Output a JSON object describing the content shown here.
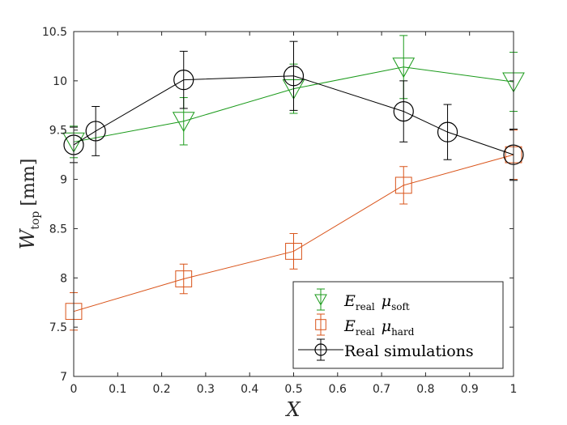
{
  "chart_data": {
    "type": "line",
    "title": "",
    "xlabel": "X",
    "ylabel": {
      "main": "W",
      "subscript": "top",
      "unit": "[mm]"
    },
    "xlim": [
      0,
      1
    ],
    "ylim": [
      7,
      10.5
    ],
    "xticks": [
      0,
      0.1,
      0.2,
      0.3,
      0.4,
      0.5,
      0.6,
      0.7,
      0.8,
      0.9,
      1
    ],
    "xtick_labels": [
      "0",
      "0.1",
      "0.2",
      "0.3",
      "0.4",
      "0.5",
      "0.6",
      "0.7",
      "0.8",
      "0.9",
      "1"
    ],
    "yticks": [
      7,
      7.5,
      8,
      8.5,
      9,
      9.5,
      10,
      10.5
    ],
    "ytick_labels": [
      "7",
      "7.5",
      "8",
      "8.5",
      "9",
      "9.5",
      "10",
      "10.5"
    ],
    "grid": false,
    "legend_position": "bottom-right",
    "series": [
      {
        "name": "E_real mu_soft",
        "legend": {
          "e": "E",
          "esub": "real",
          "mu": "μ",
          "musub": "soft"
        },
        "color": "#1a9a1a",
        "marker": "triangle-down",
        "x": [
          0,
          0.25,
          0.5,
          0.75,
          1
        ],
        "y": [
          9.38,
          9.59,
          9.92,
          10.14,
          9.99
        ],
        "err": [
          0.16,
          0.24,
          0.25,
          0.32,
          0.3
        ]
      },
      {
        "name": "E_real mu_hard",
        "legend": {
          "e": "E",
          "esub": "real",
          "mu": "μ",
          "musub": "hard"
        },
        "color": "#d95319",
        "marker": "square",
        "x": [
          0,
          0.25,
          0.5,
          0.75,
          1
        ],
        "y": [
          7.66,
          7.99,
          8.27,
          8.94,
          9.25
        ],
        "err": [
          0.19,
          0.15,
          0.18,
          0.19,
          0.25
        ]
      },
      {
        "name": "Real simulations",
        "legend": {
          "text": "Real simulations"
        },
        "color": "#000000",
        "marker": "circle",
        "x": [
          0,
          0.05,
          0.25,
          0.5,
          0.75,
          0.85,
          1
        ],
        "y": [
          9.35,
          9.49,
          10.01,
          10.05,
          9.69,
          9.48,
          9.25
        ],
        "err": [
          0.18,
          0.25,
          0.29,
          0.35,
          0.31,
          0.28,
          0.26
        ]
      }
    ]
  }
}
